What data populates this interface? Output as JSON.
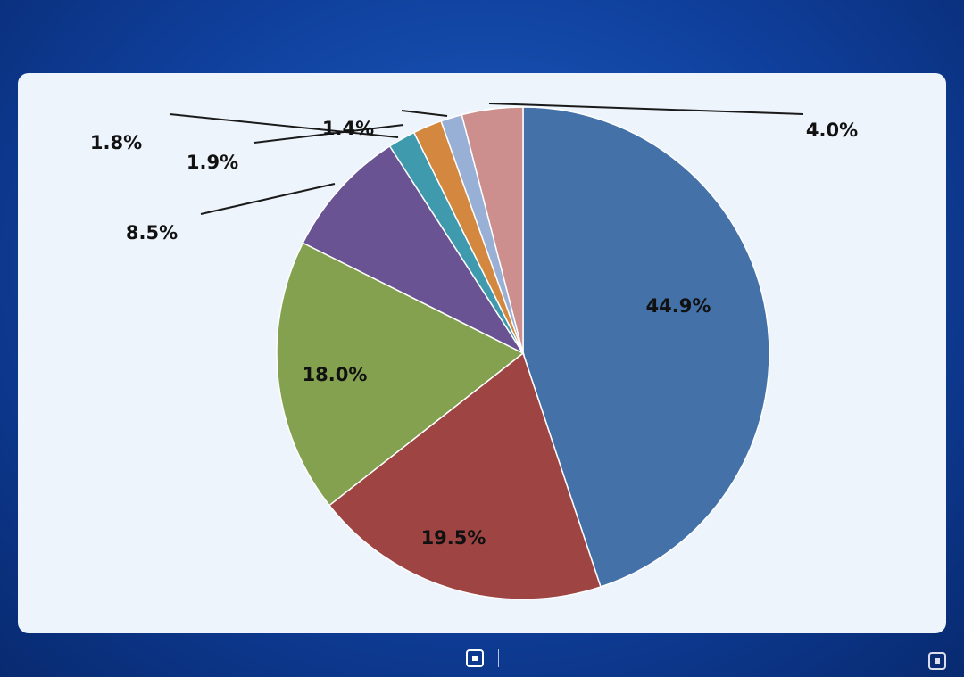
{
  "header": {
    "title": ""
  },
  "chart_data": {
    "type": "pie",
    "title": "",
    "slices": [
      {
        "name": "",
        "label": "",
        "pct_label": "44.9%",
        "value": 44.9,
        "color": "#4371a8"
      },
      {
        "name": "",
        "label": "",
        "pct_label": "19.5%",
        "value": 19.5,
        "color": "#9e4543"
      },
      {
        "name": "",
        "label": "",
        "pct_label": "18.0%",
        "value": 18.0,
        "color": "#83a14e"
      },
      {
        "name": "",
        "label": "",
        "pct_label": "8.5%",
        "value": 8.5,
        "color": "#6a5393"
      },
      {
        "name": "",
        "label": "",
        "pct_label": "1.8%",
        "value": 1.8,
        "color": "#3f9aae"
      },
      {
        "name": "",
        "label": "",
        "pct_label": "1.9%",
        "value": 1.9,
        "color": "#d4873f"
      },
      {
        "name": "",
        "label": "",
        "pct_label": "1.4%",
        "value": 1.4,
        "color": "#98afd6"
      },
      {
        "name": "",
        "label": "",
        "pct_label": "4.0%",
        "value": 4.0,
        "color": "#cc8f8d"
      }
    ]
  },
  "watermark": {
    "text": ""
  },
  "source": {
    "text": ""
  },
  "footer": {
    "production_label": "",
    "brand": "",
    "slogan": ""
  },
  "corner_brand": ""
}
